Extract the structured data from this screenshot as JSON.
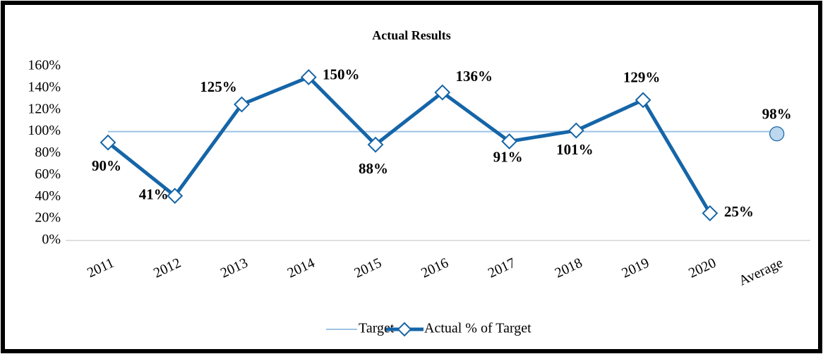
{
  "chart_data": {
    "type": "line",
    "title": "Actual Results",
    "categories": [
      "2011",
      "2012",
      "2013",
      "2014",
      "2015",
      "2016",
      "2017",
      "2018",
      "2019",
      "2020",
      "Average"
    ],
    "series": [
      {
        "name": "Target",
        "color": "#9dc3e6",
        "values": [
          100,
          100,
          100,
          100,
          100,
          100,
          100,
          100,
          100,
          100,
          100
        ]
      },
      {
        "name": "Actual % of Target",
        "color": "#1565a8",
        "marker": "diamond",
        "values": [
          90,
          41,
          125,
          150,
          88,
          136,
          91,
          101,
          129,
          25,
          null
        ],
        "value_labels": [
          "90%",
          "41%",
          "125%",
          "150%",
          "88%",
          "136%",
          "91%",
          "101%",
          "129%",
          "25%",
          null
        ]
      }
    ],
    "average": {
      "value": 98,
      "value_label": "98%",
      "color": "#bdd7ee"
    },
    "ylim": [
      0,
      160
    ],
    "yticks": [
      {
        "value": 0,
        "label": "0%"
      },
      {
        "value": 20,
        "label": "20%"
      },
      {
        "value": 40,
        "label": "40%"
      },
      {
        "value": 60,
        "label": "60%"
      },
      {
        "value": 80,
        "label": "80%"
      },
      {
        "value": 100,
        "label": "100%"
      },
      {
        "value": 120,
        "label": "120%"
      },
      {
        "value": 140,
        "label": "140%"
      },
      {
        "value": 160,
        "label": "160%"
      }
    ],
    "grid": false,
    "legend": "bottom"
  }
}
